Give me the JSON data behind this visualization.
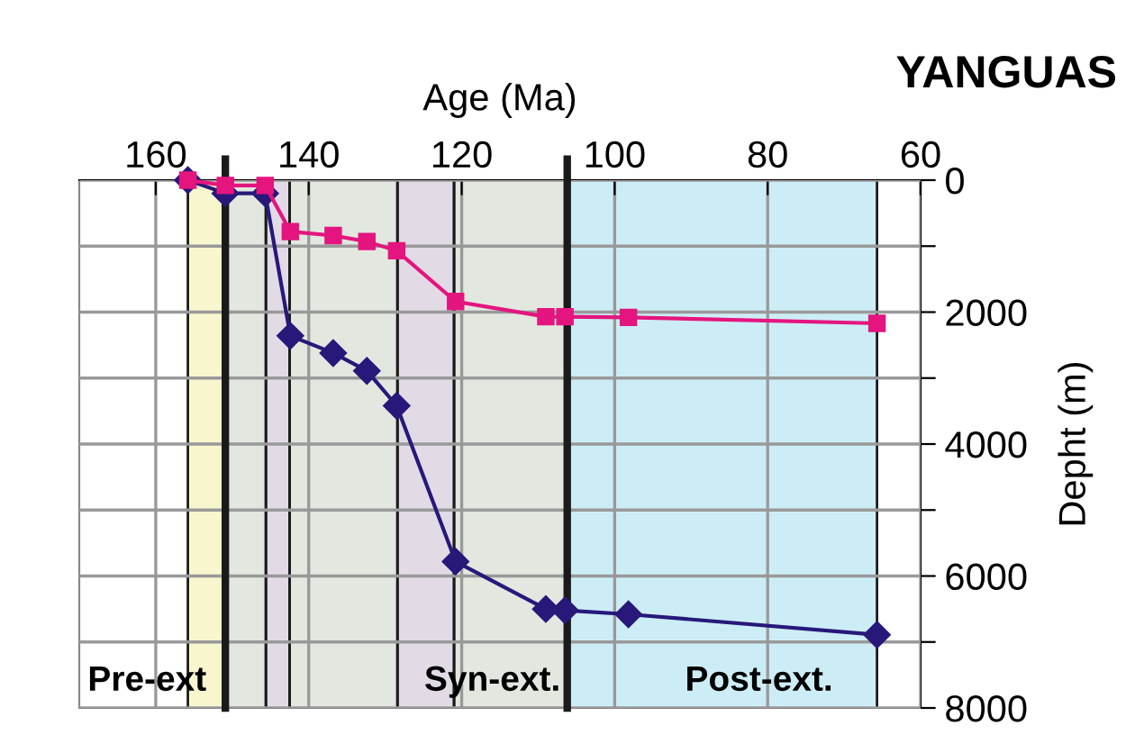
{
  "chart_data": {
    "type": "line",
    "title": "YANGUAS",
    "xlabel": "Age (Ma)",
    "ylabel": "Depht (m)",
    "xlim": [
      170,
      60
    ],
    "xticks": [
      160,
      140,
      120,
      100,
      80,
      60
    ],
    "ylim": [
      8000,
      0
    ],
    "yticks": [
      0,
      {
        "value": 1000,
        "label": null
      },
      2000,
      {
        "value": 3000,
        "label": null
      },
      4000,
      {
        "value": 5000,
        "label": null
      },
      6000,
      {
        "value": 7000,
        "label": null
      },
      8000
    ],
    "grid": true,
    "series": [
      {
        "color": "#e4157f",
        "marker": "square",
        "x": [
          155.8,
          150.9,
          145.7,
          142.4,
          136.8,
          132.4,
          128.5,
          120.8,
          109,
          106.5,
          98.2,
          65.7
        ],
        "values": [
          0,
          80,
          80,
          780,
          840,
          930,
          1070,
          1840,
          2070,
          2070,
          2080,
          2170
        ]
      },
      {
        "color": "#27187a",
        "marker": "diamond",
        "x": [
          155.8,
          150.9,
          145.7,
          142.4,
          136.8,
          132.4,
          128.5,
          120.8,
          109,
          106.5,
          98.2,
          65.7
        ],
        "values": [
          0,
          200,
          200,
          2360,
          2620,
          2890,
          3420,
          5780,
          6500,
          6520,
          6580,
          6890
        ]
      }
    ],
    "bands": [
      {
        "axis": "x",
        "from": 155.8,
        "to": 150.9,
        "color": "#f8f6cf"
      },
      {
        "axis": "x",
        "from": 150.9,
        "to": 145.6,
        "color": "#e2e8df"
      },
      {
        "axis": "x",
        "from": 145.6,
        "to": 142.5,
        "color": "#e2dbe6"
      },
      {
        "axis": "x",
        "from": 142.5,
        "to": 128.4,
        "color": "#e2e8df"
      },
      {
        "axis": "x",
        "from": 128.4,
        "to": 121,
        "color": "#e2dbe6"
      },
      {
        "axis": "x",
        "from": 121,
        "to": 106.2,
        "color": "#e2e8df"
      },
      {
        "axis": "x",
        "from": 106.2,
        "to": 65.7,
        "color": "#cdedf6"
      }
    ],
    "ref_lines": [
      {
        "axis": "x",
        "value": 150.9,
        "color": "#1a1a1a"
      },
      {
        "axis": "x",
        "value": 106.2,
        "color": "#1a1a1a"
      }
    ],
    "annotations": [
      "Pre-ext",
      "Syn-ext.",
      "Post-ext."
    ]
  }
}
